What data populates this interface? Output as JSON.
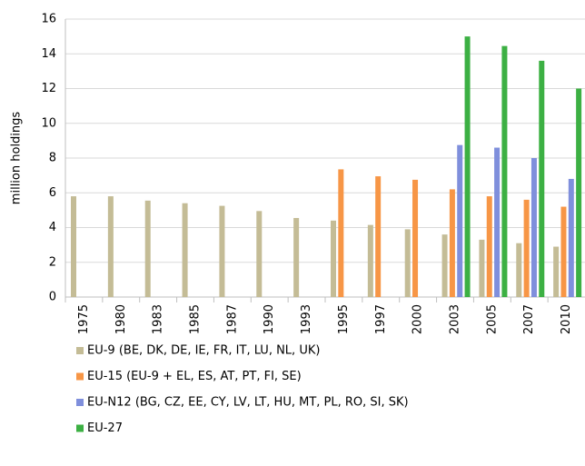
{
  "chart_data": {
    "type": "bar",
    "y_label": "million holdings",
    "categories": [
      "1975",
      "1980",
      "1983",
      "1985",
      "1987",
      "1990",
      "1993",
      "1995",
      "1997",
      "2000",
      "2003",
      "2005",
      "2007",
      "2010"
    ],
    "series": [
      {
        "name": "EU-9 (BE, DK, DE, IE, FR, IT, LU, NL, UK)",
        "color": "#c4bc96",
        "values": [
          5.8,
          5.8,
          5.55,
          5.4,
          5.25,
          4.95,
          4.55,
          4.4,
          4.15,
          3.9,
          3.6,
          3.3,
          3.1,
          2.9
        ]
      },
      {
        "name": "EU-15 (EU-9 + EL, ES, AT, PT, FI, SE)",
        "color": "#f79646",
        "values": [
          null,
          null,
          null,
          null,
          null,
          null,
          null,
          7.35,
          6.95,
          6.75,
          6.2,
          5.8,
          5.6,
          5.2
        ]
      },
      {
        "name": "EU-N12 (BG, CZ, EE, CY, LV, LT, HU, MT, PL, RO, SI, SK)",
        "color": "#7f8fdc",
        "values": [
          null,
          null,
          null,
          null,
          null,
          null,
          null,
          null,
          null,
          null,
          8.75,
          8.6,
          8.0,
          6.8
        ]
      },
      {
        "name": "EU-27",
        "color": "#3cb043",
        "values": [
          null,
          null,
          null,
          null,
          null,
          null,
          null,
          null,
          null,
          null,
          15.0,
          14.45,
          13.6,
          12.0
        ]
      }
    ],
    "ylim": [
      0,
      16
    ],
    "yticks": [
      0,
      2,
      4,
      6,
      8,
      10,
      12,
      14,
      16
    ],
    "grid": true
  }
}
